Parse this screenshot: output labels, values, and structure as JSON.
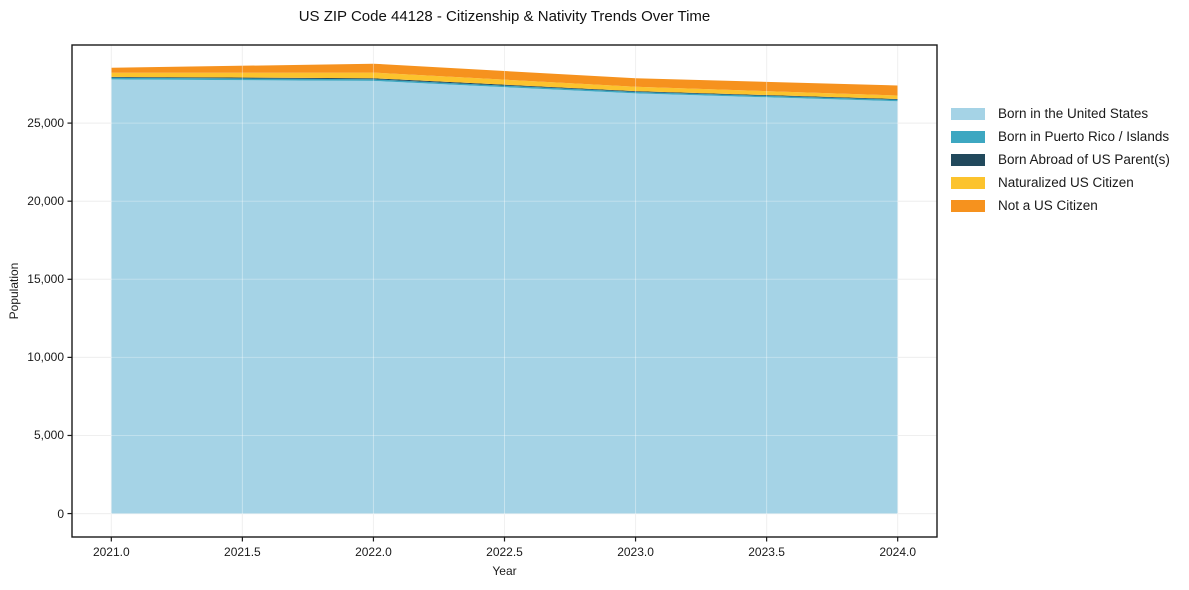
{
  "chart_data": {
    "type": "area",
    "stacked": true,
    "title": "US ZIP Code 44128 - Citizenship & Nativity Trends Over Time",
    "xlabel": "Year",
    "ylabel": "Population",
    "x": [
      2021,
      2022,
      2023,
      2024
    ],
    "series": [
      {
        "name": "Born in the United States",
        "color": "#A5D3E6",
        "values": [
          27800,
          27700,
          26900,
          26400
        ]
      },
      {
        "name": "Born in Puerto Rico / Islands",
        "color": "#3DA7C1",
        "values": [
          110,
          105,
          100,
          100
        ]
      },
      {
        "name": "Born Abroad of US Parent(s)",
        "color": "#21495C",
        "values": [
          50,
          60,
          50,
          45
        ]
      },
      {
        "name": "Naturalized US Citizen",
        "color": "#FCC32D",
        "values": [
          260,
          370,
          280,
          220
        ]
      },
      {
        "name": "Not a US Citizen",
        "color": "#F6921E",
        "values": [
          320,
          570,
          540,
          640
        ]
      }
    ],
    "x_ticks": [
      "2021.0",
      "2021.5",
      "2022.0",
      "2022.5",
      "2023.0",
      "2023.5",
      "2024.0"
    ],
    "x_tick_values": [
      2021.0,
      2021.5,
      2022.0,
      2022.5,
      2023.0,
      2023.5,
      2024.0
    ],
    "y_ticks": [
      "0",
      "5,000",
      "10,000",
      "15,000",
      "20,000",
      "25,000"
    ],
    "y_tick_values": [
      0,
      5000,
      10000,
      15000,
      20000,
      25000
    ],
    "xlim": [
      2020.85,
      2024.15
    ],
    "ylim": [
      -1500,
      30000
    ],
    "grid": true,
    "legend_position": "outside-right",
    "colors": {
      "background": "#ffffff",
      "grid": "#e9e9e9",
      "spine": "#1a1a1a",
      "text": "#1a1a1a"
    }
  }
}
